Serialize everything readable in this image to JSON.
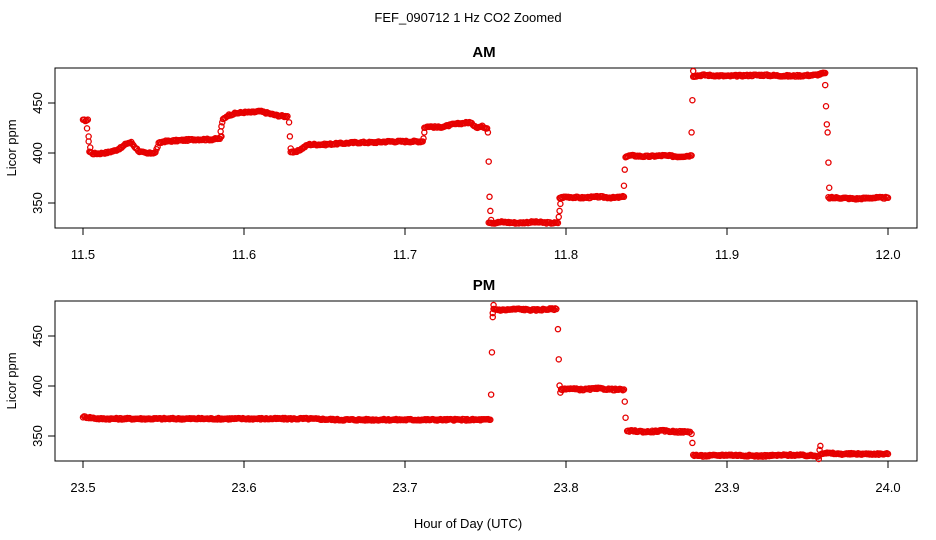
{
  "title": "FEF_090712  1 Hz CO2 Zoomed",
  "xlabel": "Hour of Day (UTC)",
  "colors": {
    "points": "#e60000",
    "axes": "#000000",
    "background": "#ffffff"
  },
  "chart_data": [
    {
      "type": "scatter",
      "title": "AM",
      "xlabel": "Hour of Day (UTC)",
      "ylabel": "Licor ppm",
      "xlim": [
        11.5,
        12.0
      ],
      "ylim": [
        325,
        484
      ],
      "xticks": [
        "11.5",
        "11.6",
        "11.7",
        "11.8",
        "11.9",
        "12.0"
      ],
      "yticks": [
        "350",
        "400",
        "450"
      ],
      "grid": false,
      "marker": "open-circle",
      "segments": [
        {
          "x": [
            11.5,
            11.503,
            11.504,
            11.506,
            11.51,
            11.515,
            11.52,
            11.524,
            11.527,
            11.53,
            11.532,
            11.535,
            11.54,
            11.545,
            11.547,
            11.55,
            11.56,
            11.57,
            11.58,
            11.585,
            11.586
          ],
          "y": [
            432,
            432,
            401,
            399,
            399,
            400,
            402,
            405,
            409,
            410,
            406,
            401,
            399,
            400,
            409,
            411,
            412,
            413,
            413,
            414,
            416
          ]
        },
        {
          "x": [
            11.587,
            11.59,
            11.595,
            11.6,
            11.605,
            11.61,
            11.615,
            11.62,
            11.625,
            11.627
          ],
          "y": [
            433,
            437,
            439,
            440,
            440,
            441,
            439,
            437,
            436,
            436
          ]
        },
        {
          "x": [
            11.629,
            11.632,
            11.635,
            11.64,
            11.65,
            11.66,
            11.67,
            11.68,
            11.69,
            11.7,
            11.711
          ],
          "y": [
            401,
            400,
            403,
            408,
            408,
            409,
            410,
            410,
            411,
            411,
            411
          ]
        },
        {
          "x": [
            11.712,
            11.715,
            11.72,
            11.725,
            11.73,
            11.735,
            11.74,
            11.745,
            11.748,
            11.751
          ],
          "y": [
            425,
            426,
            425,
            426,
            428,
            429,
            430,
            425,
            426,
            424
          ]
        },
        {
          "x": [
            11.752,
            11.755,
            11.76,
            11.77,
            11.78,
            11.79,
            11.795
          ],
          "y": [
            331,
            330,
            331,
            330,
            331,
            330,
            330
          ]
        },
        {
          "x": [
            11.796,
            11.8,
            11.81,
            11.82,
            11.83,
            11.836
          ],
          "y": [
            355,
            356,
            355,
            356,
            355,
            356
          ]
        },
        {
          "x": [
            11.837,
            11.84,
            11.85,
            11.86,
            11.87,
            11.878
          ],
          "y": [
            396,
            397,
            396,
            397,
            396,
            397
          ]
        },
        {
          "x": [
            11.879,
            11.885,
            11.9,
            11.92,
            11.94,
            11.955,
            11.961
          ],
          "y": [
            476,
            477,
            476,
            477,
            476,
            477,
            479
          ]
        },
        {
          "x": [
            11.963,
            11.97,
            11.98,
            11.99,
            12.0
          ],
          "y": [
            355,
            355,
            354,
            355,
            355
          ]
        }
      ],
      "transition_points": {
        "x": [
          11.5025,
          11.5035,
          11.5045,
          11.5855,
          11.586,
          11.5865,
          11.628,
          11.6285,
          11.629,
          11.7115,
          11.712,
          11.7515,
          11.752,
          11.7525,
          11.753,
          11.7535,
          11.7955,
          11.796,
          11.7965,
          11.836,
          11.8365,
          11.8375,
          11.878,
          11.8785,
          11.879,
          11.961,
          11.9615,
          11.962,
          11.9625,
          11.963,
          11.9635
        ],
        "y": [
          424,
          411,
          405,
          421,
          426,
          430,
          430,
          416,
          404,
          414,
          420,
          420,
          391,
          356,
          342,
          333,
          336,
          342,
          349,
          367,
          383,
          396,
          420,
          452,
          481,
          467,
          446,
          428,
          420,
          390,
          365
        ]
      }
    },
    {
      "type": "scatter",
      "title": "PM",
      "xlabel": "Hour of Day (UTC)",
      "ylabel": "Licor ppm",
      "xlim": [
        23.5,
        24.0
      ],
      "ylim": [
        325,
        484
      ],
      "xticks": [
        "23.5",
        "23.6",
        "23.7",
        "23.8",
        "23.9",
        "24.0"
      ],
      "yticks": [
        "350",
        "400",
        "450"
      ],
      "grid": false,
      "marker": "open-circle",
      "segments": [
        {
          "x": [
            23.5,
            23.505,
            23.51,
            23.52,
            23.54,
            23.56,
            23.58,
            23.6,
            23.62,
            23.64,
            23.66,
            23.68,
            23.7,
            23.72,
            23.74,
            23.753
          ],
          "y": [
            369,
            368,
            367,
            367,
            367,
            367,
            367,
            367,
            367,
            367,
            366,
            366,
            366,
            366,
            366,
            366
          ]
        },
        {
          "x": [
            23.755,
            23.76,
            23.77,
            23.78,
            23.79,
            23.794
          ],
          "y": [
            476,
            475,
            476,
            475,
            476,
            476
          ]
        },
        {
          "x": [
            23.797,
            23.8,
            23.81,
            23.82,
            23.83,
            23.836
          ],
          "y": [
            396,
            397,
            396,
            397,
            396,
            396
          ]
        },
        {
          "x": [
            23.838,
            23.84,
            23.85,
            23.86,
            23.87,
            23.877
          ],
          "y": [
            354,
            355,
            354,
            355,
            354,
            354
          ]
        },
        {
          "x": [
            23.879,
            23.885,
            23.9,
            23.92,
            23.94,
            23.957
          ],
          "y": [
            331,
            330,
            331,
            330,
            331,
            330
          ]
        },
        {
          "x": [
            23.958,
            23.96,
            23.97,
            23.98,
            23.99,
            24.0
          ],
          "y": [
            332,
            333,
            332,
            332,
            332,
            332
          ]
        }
      ],
      "transition_points": {
        "x": [
          23.7535,
          23.754,
          23.7545,
          23.755,
          23.7545,
          23.795,
          23.7955,
          23.796,
          23.7965,
          23.797,
          23.8365,
          23.837,
          23.878,
          23.8785,
          23.957,
          23.958,
          23.9575
        ],
        "y": [
          391,
          433,
          468,
          480,
          472,
          456,
          426,
          400,
          393,
          396,
          384,
          368,
          352,
          343,
          327,
          340,
          336
        ]
      }
    }
  ]
}
